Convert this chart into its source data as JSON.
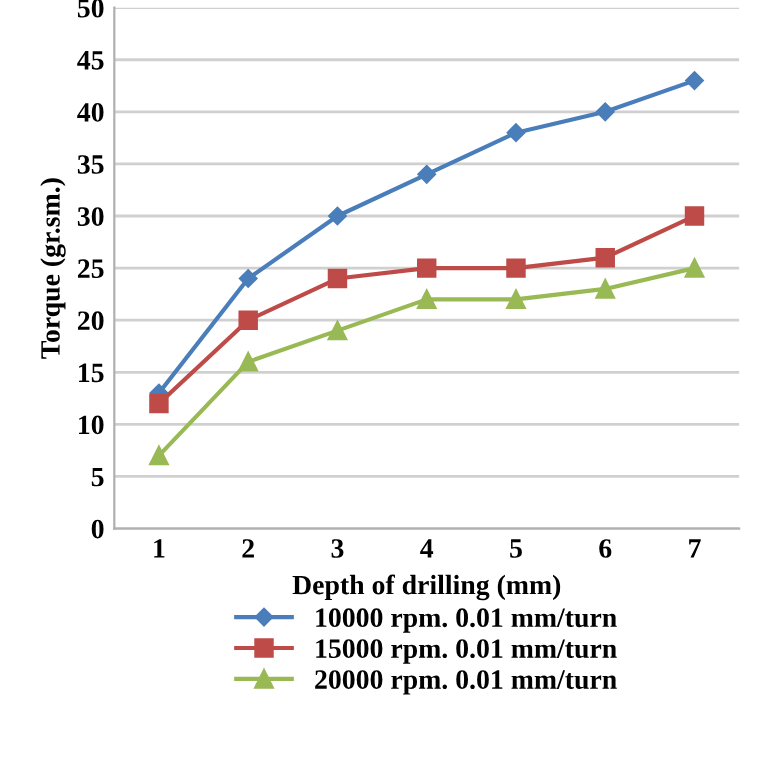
{
  "chart_data": {
    "type": "line",
    "xlabel": "Depth of drilling (mm)",
    "ylabel": "Torque (gr.sm.)",
    "categories": [
      "1",
      "2",
      "3",
      "4",
      "5",
      "6",
      "7"
    ],
    "series": [
      {
        "name": "10000 rpm. 0.01 mm/turn",
        "color": "#4a7ebb",
        "marker": "diamond",
        "values": [
          13,
          24,
          30,
          34,
          38,
          40,
          43
        ]
      },
      {
        "name": "15000 rpm. 0.01 mm/turn",
        "color": "#be4b48",
        "marker": "square",
        "values": [
          12,
          20,
          24,
          25,
          25,
          26,
          30
        ]
      },
      {
        "name": "20000 rpm. 0.01 mm/turn",
        "color": "#98b954",
        "marker": "triangle",
        "values": [
          7,
          16,
          19,
          22,
          22,
          23,
          25
        ]
      }
    ],
    "ylim": [
      0,
      50
    ],
    "yticks": [
      0,
      5,
      10,
      15,
      20,
      25,
      30,
      35,
      40,
      45,
      50
    ],
    "grid": "y",
    "legend": "bottom",
    "line_style": "solid"
  }
}
